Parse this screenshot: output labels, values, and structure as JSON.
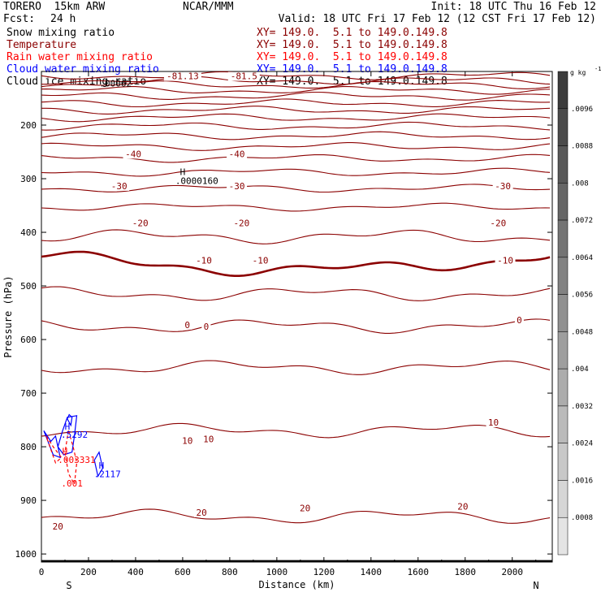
{
  "header": {
    "model": "TORERO  15km ARW",
    "org": "NCAR/MMM",
    "init": "Init: 18 UTC Thu 16 Feb 12",
    "fcst_label": "Fcst:",
    "fcst_value": "24 h",
    "valid": "Valid: 18 UTC Fri 17 Feb 12 (12 CST Fri 17 Feb 12)"
  },
  "fields": [
    {
      "name": "Snow mixing ratio",
      "xy": "XY= 149.0.  5.1 to 149.0.149.8",
      "color": "#000000"
    },
    {
      "name": "Temperature",
      "xy": "XY= 149.0.  5.1 to 149.0.149.8",
      "color": "#8b0000"
    },
    {
      "name": "Rain water mixing ratio",
      "xy": "XY= 149.0.  5.1 to 149.0.149.8",
      "color": "#ff0000"
    },
    {
      "name": "Cloud water mixing ratio",
      "xy": "XY= 149.0.  5.1 to 149.0.149.8",
      "color": "#0000ff"
    },
    {
      "name": "Cloud ice mixing ratio",
      "xy": "XY= 149.0.  5.1 to 149.0.149.8",
      "color": "#000000"
    }
  ],
  "chart_data": {
    "type": "cross-section contour",
    "xlabel": "Distance (km)",
    "ylabel": "Pressure (hPa)",
    "xlim": [
      0,
      2170
    ],
    "ylim": [
      100,
      1015
    ],
    "x_ticks": [
      0,
      200,
      400,
      600,
      800,
      1000,
      1200,
      1400,
      1600,
      1800,
      2000
    ],
    "y_ticks": [
      200,
      300,
      400,
      500,
      600,
      700,
      800,
      900,
      1000
    ],
    "endpoints": {
      "left": "S",
      "right": "N"
    },
    "colorbar": {
      "unit": "g kg",
      "unit_exp": "-1",
      "labels": [
        ".0096",
        ".0088",
        ".008",
        ".0072",
        ".0064",
        ".0056",
        ".0048",
        ".004",
        ".0032",
        ".0024",
        ".0016",
        ".0008"
      ],
      "shades": [
        "#3c3c3c",
        "#4a4a4a",
        "#585858",
        "#666666",
        "#747474",
        "#828282",
        "#909090",
        "#9e9e9e",
        "#acacac",
        "#bababa",
        "#c8c8c8",
        "#d6d6d6",
        "#e4e4e4"
      ]
    },
    "temperature_isotherms_C": [
      -80,
      -75,
      -70,
      -65,
      -60,
      -55,
      -50,
      -45,
      -40,
      -35,
      -30,
      -25,
      -20,
      -15,
      -10,
      -5,
      0,
      5,
      10,
      15,
      20,
      25
    ],
    "temperature_base_pressure_hPa": [
      108,
      117,
      125,
      135,
      146,
      159,
      172,
      186,
      202,
      220,
      240,
      262,
      288,
      318,
      353,
      408,
      452,
      515,
      575,
      652,
      770,
      930
    ],
    "temperature_labels": [
      {
        "text": "-81.13",
        "x": 600,
        "p": 113
      },
      {
        "text": "-81.5",
        "x": 860,
        "p": 113
      },
      {
        "text": "-40",
        "x": 390,
        "p": 258
      },
      {
        "text": "-40",
        "x": 830,
        "p": 258
      },
      {
        "text": "-30",
        "x": 330,
        "p": 318
      },
      {
        "text": "-30",
        "x": 830,
        "p": 318
      },
      {
        "text": "-30",
        "x": 1960,
        "p": 318
      },
      {
        "text": "-20",
        "x": 420,
        "p": 387
      },
      {
        "text": "-20",
        "x": 850,
        "p": 387
      },
      {
        "text": "-20",
        "x": 1940,
        "p": 387
      },
      {
        "text": "-10",
        "x": 690,
        "p": 457
      },
      {
        "text": "-10",
        "x": 930,
        "p": 457
      },
      {
        "text": "-10",
        "x": 1970,
        "p": 457
      },
      {
        "text": "0",
        "x": 620,
        "p": 577
      },
      {
        "text": "0",
        "x": 700,
        "p": 580
      },
      {
        "text": "0",
        "x": 2030,
        "p": 568
      },
      {
        "text": "10",
        "x": 620,
        "p": 793
      },
      {
        "text": "10",
        "x": 710,
        "p": 790
      },
      {
        "text": "10",
        "x": 1920,
        "p": 759
      },
      {
        "text": "20",
        "x": 70,
        "p": 953
      },
      {
        "text": "20",
        "x": 680,
        "p": 927
      },
      {
        "text": "20",
        "x": 1120,
        "p": 919
      },
      {
        "text": "20",
        "x": 1790,
        "p": 916
      }
    ],
    "extrema_labels": [
      {
        "text": "H",
        "x": 600,
        "p": 287,
        "color": "#000000"
      },
      {
        "text": ".0000160",
        "x": 660,
        "p": 304,
        "color": "#000000"
      },
      {
        "text": ".00062",
        "x": 315,
        "p": 122,
        "color": "#000000"
      },
      {
        "text": "H",
        "x": 110,
        "p": 762,
        "color": "#0000ff"
      },
      {
        "text": ".5292",
        "x": 140,
        "p": 777,
        "color": "#0000ff"
      },
      {
        "text": "H",
        "x": 100,
        "p": 808,
        "color": "#ff0000"
      },
      {
        "text": ".003331",
        "x": 150,
        "p": 824,
        "color": "#ff0000"
      },
      {
        "text": ".001",
        "x": 130,
        "p": 868,
        "color": "#ff0000"
      },
      {
        "text": "H",
        "x": 255,
        "p": 835,
        "color": "#0000ff"
      },
      {
        "text": ".2117",
        "x": 280,
        "p": 851,
        "color": "#0000ff"
      }
    ]
  }
}
